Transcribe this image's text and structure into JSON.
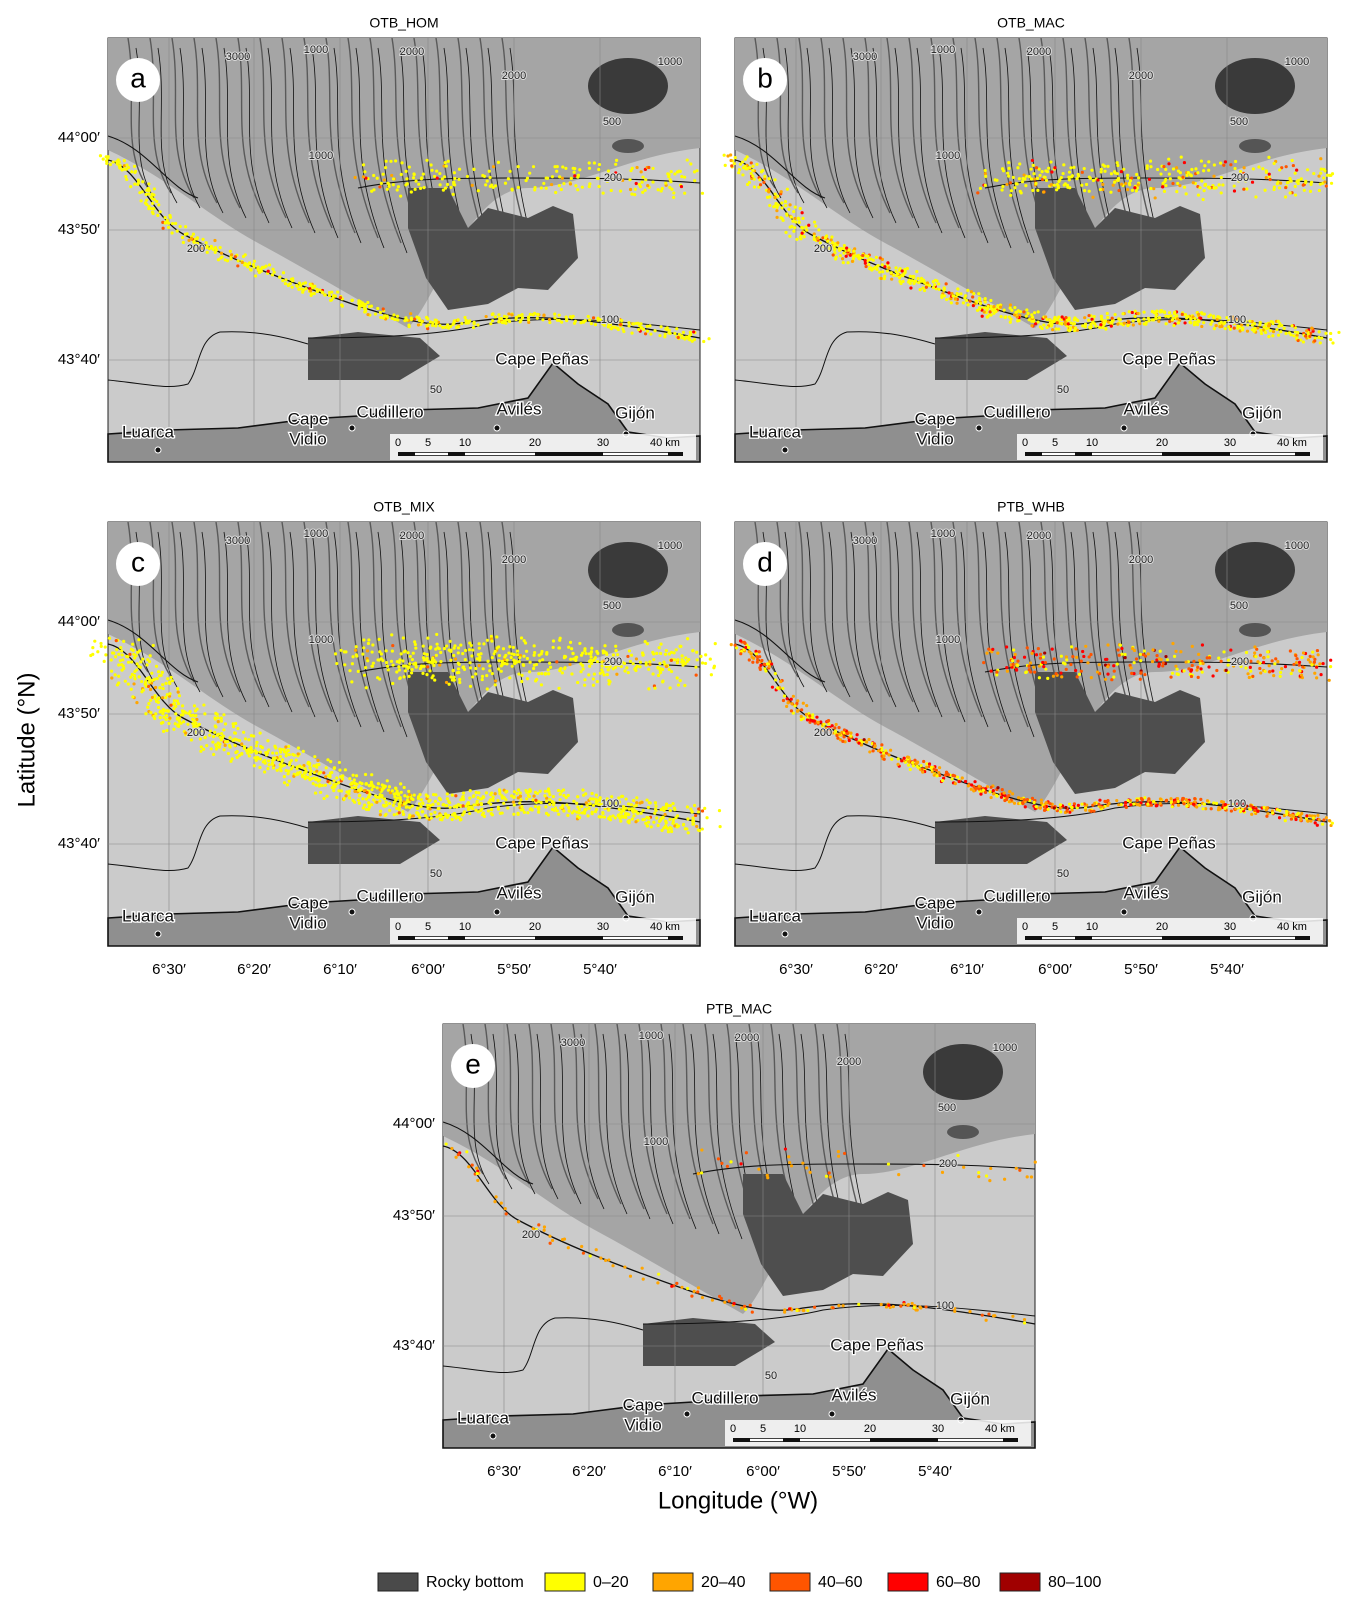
{
  "panels": [
    {
      "title": "OTB_HOM",
      "letter": "a"
    },
    {
      "title": "OTB_MAC",
      "letter": "b"
    },
    {
      "title": "OTB_MIX",
      "letter": "c"
    },
    {
      "title": "PTB_WHB",
      "letter": "d"
    },
    {
      "title": "PTB_MAC",
      "letter": "e"
    }
  ],
  "axes": {
    "ylabel": "Latitude (°N)",
    "xlabel": "Longitude (°W)",
    "lat_ticks": [
      "44°00′",
      "43°50′",
      "43°40′"
    ],
    "lon_ticks": [
      "6°30′",
      "6°20′",
      "6°10′",
      "6°00′",
      "5°50′",
      "5°40′"
    ]
  },
  "map": {
    "places": [
      "Luarca",
      "Cape",
      "Vidio",
      "Cudillero",
      "Avilés",
      "Gijón",
      "Cape Peñas"
    ],
    "contour_labels": [
      3000,
      1000,
      2000,
      2000,
      1000,
      500,
      1000,
      200,
      200,
      100,
      50
    ],
    "scale_labels": [
      "0",
      "5",
      "10",
      "20",
      "30",
      "40 km"
    ]
  },
  "legend": [
    {
      "name": "Rocky bottom",
      "color": "#4a4a4a"
    },
    {
      "name": "0–20",
      "color": "#ffff00"
    },
    {
      "name": "20–40",
      "color": "#ffa500"
    },
    {
      "name": "40–60",
      "color": "#ff5500"
    },
    {
      "name": "60–80",
      "color": "#ff0000"
    },
    {
      "name": "80–100",
      "color": "#a00000"
    }
  ]
}
